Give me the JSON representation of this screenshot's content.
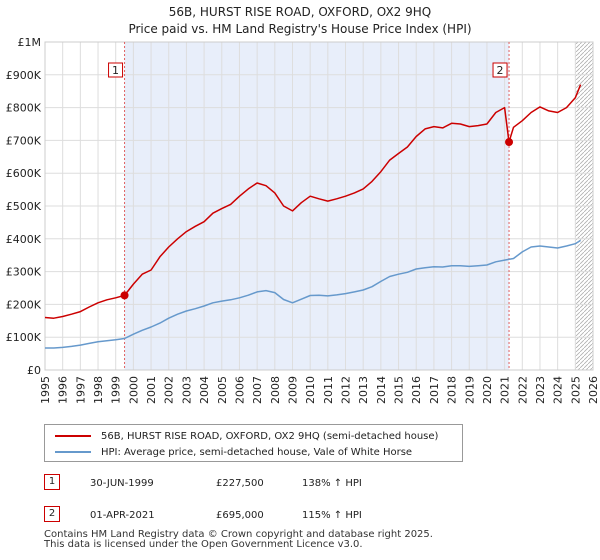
{
  "chart_data": {
    "type": "line",
    "title": "56B, HURST RISE ROAD, OXFORD, OX2 9HQ",
    "subtitle": "Price paid vs. HM Land Registry's House Price Index (HPI)",
    "x_ticks": [
      "1995",
      "1996",
      "1997",
      "1998",
      "1999",
      "2000",
      "2001",
      "2002",
      "2003",
      "2004",
      "2005",
      "2006",
      "2007",
      "2008",
      "2009",
      "2010",
      "2011",
      "2012",
      "2013",
      "2014",
      "2015",
      "2016",
      "2017",
      "2018",
      "2019",
      "2020",
      "2021",
      "2022",
      "2023",
      "2024",
      "2025",
      "2026"
    ],
    "y_ticks": [
      "£0",
      "£100K",
      "£200K",
      "£300K",
      "£400K",
      "£500K",
      "£600K",
      "£700K",
      "£800K",
      "£900K",
      "£1M"
    ],
    "xlim": [
      1995,
      2026
    ],
    "ylim": [
      0,
      1000000
    ],
    "shaded_period": [
      1999.5,
      2021.25
    ],
    "hatched_from": 2025.0,
    "series": [
      {
        "name": "56B, HURST RISE ROAD, OXFORD, OX2 9HQ (semi-detached house)",
        "color": "#cc0000",
        "x": [
          1995.0,
          1995.5,
          1996.0,
          1996.5,
          1997.0,
          1997.5,
          1998.0,
          1998.5,
          1999.0,
          1999.5,
          2000.0,
          2000.5,
          2001.0,
          2001.5,
          2002.0,
          2002.5,
          2003.0,
          2003.5,
          2004.0,
          2004.5,
          2005.0,
          2005.5,
          2006.0,
          2006.5,
          2007.0,
          2007.5,
          2008.0,
          2008.5,
          2009.0,
          2009.5,
          2010.0,
          2010.5,
          2011.0,
          2011.5,
          2012.0,
          2012.5,
          2013.0,
          2013.5,
          2014.0,
          2014.5,
          2015.0,
          2015.5,
          2016.0,
          2016.5,
          2017.0,
          2017.5,
          2018.0,
          2018.5,
          2019.0,
          2019.5,
          2020.0,
          2020.5,
          2021.0,
          2021.25,
          2021.5,
          2022.0,
          2022.5,
          2023.0,
          2023.5,
          2024.0,
          2024.5,
          2025.0,
          2025.3
        ],
        "y": [
          160000,
          158000,
          163000,
          170000,
          178000,
          192000,
          205000,
          214000,
          220000,
          227500,
          262000,
          292000,
          305000,
          345000,
          375000,
          400000,
          422000,
          438000,
          452000,
          478000,
          492000,
          505000,
          530000,
          552000,
          570000,
          562000,
          540000,
          500000,
          485000,
          510000,
          530000,
          522000,
          515000,
          522000,
          530000,
          540000,
          552000,
          575000,
          605000,
          640000,
          660000,
          680000,
          712000,
          735000,
          742000,
          738000,
          752000,
          750000,
          742000,
          745000,
          750000,
          785000,
          800000,
          695000,
          740000,
          760000,
          785000,
          802000,
          790000,
          785000,
          800000,
          830000,
          870000
        ]
      },
      {
        "name": "HPI: Average price, semi-detached house, Vale of White Horse",
        "color": "#6699cc",
        "x": [
          1995.0,
          1995.5,
          1996.0,
          1996.5,
          1997.0,
          1997.5,
          1998.0,
          1998.5,
          1999.0,
          1999.5,
          2000.0,
          2000.5,
          2001.0,
          2001.5,
          2002.0,
          2002.5,
          2003.0,
          2003.5,
          2004.0,
          2004.5,
          2005.0,
          2005.5,
          2006.0,
          2006.5,
          2007.0,
          2007.5,
          2008.0,
          2008.5,
          2009.0,
          2009.5,
          2010.0,
          2010.5,
          2011.0,
          2011.5,
          2012.0,
          2012.5,
          2013.0,
          2013.5,
          2014.0,
          2014.5,
          2015.0,
          2015.5,
          2016.0,
          2016.5,
          2017.0,
          2017.5,
          2018.0,
          2018.5,
          2019.0,
          2019.5,
          2020.0,
          2020.5,
          2021.0,
          2021.5,
          2022.0,
          2022.5,
          2023.0,
          2023.5,
          2024.0,
          2024.5,
          2025.0,
          2025.3
        ],
        "y": [
          67000,
          67000,
          69000,
          72000,
          76000,
          81000,
          86000,
          89000,
          92000,
          96000,
          109000,
          121000,
          131000,
          143000,
          158000,
          170000,
          180000,
          187000,
          195000,
          205000,
          210000,
          214000,
          220000,
          228000,
          238000,
          242000,
          236000,
          215000,
          205000,
          216000,
          227000,
          228000,
          226000,
          229000,
          233000,
          238000,
          244000,
          254000,
          270000,
          285000,
          292000,
          298000,
          308000,
          312000,
          315000,
          314000,
          318000,
          318000,
          316000,
          318000,
          320000,
          330000,
          335000,
          340000,
          360000,
          375000,
          378000,
          375000,
          372000,
          378000,
          385000,
          395000
        ]
      }
    ],
    "markers": [
      {
        "id": "1",
        "x": 1999.5,
        "y": 227500
      },
      {
        "id": "2",
        "x": 2021.25,
        "y": 695000
      }
    ]
  },
  "legend": {
    "property_label": "56B, HURST RISE ROAD, OXFORD, OX2 9HQ (semi-detached house)",
    "hpi_label": "HPI: Average price, semi-detached house, Vale of White Horse",
    "property_color": "#cc0000",
    "hpi_color": "#6699cc"
  },
  "sales": [
    {
      "num": "1",
      "date": "30-JUN-1999",
      "price": "£227,500",
      "hpi": "138% ↑ HPI"
    },
    {
      "num": "2",
      "date": "01-APR-2021",
      "price": "£695,000",
      "hpi": "115% ↑ HPI"
    }
  ],
  "footer": {
    "line1": "Contains HM Land Registry data © Crown copyright and database right 2025.",
    "line2": "This data is licensed under the Open Government Licence v3.0."
  }
}
